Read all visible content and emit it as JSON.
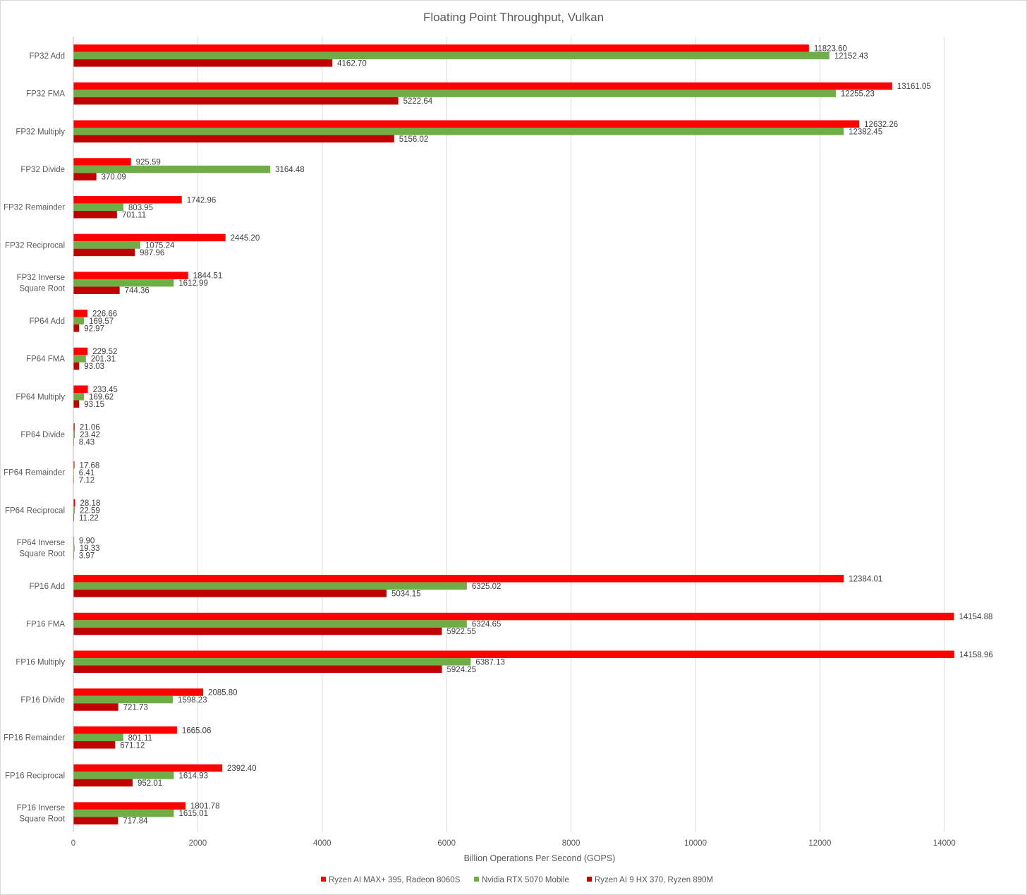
{
  "chart_data": {
    "type": "bar",
    "orientation": "horizontal",
    "title": "Floating Point Throughput, Vulkan",
    "xlabel": "Billion Operations Per Second (GOPS)",
    "ylabel": "",
    "xlim": [
      0,
      15000
    ],
    "x_ticks": [
      0,
      2000,
      4000,
      6000,
      8000,
      10000,
      12000,
      14000
    ],
    "grid": "vertical",
    "legend_position": "bottom",
    "categories": [
      "FP32 Add",
      "FP32 FMA",
      "FP32 Multiply",
      "FP32 Divide",
      "FP32 Remainder",
      "FP32 Reciprocal",
      "FP32 Inverse Square Root",
      "FP64 Add",
      "FP64 FMA",
      "FP64 Multiply",
      "FP64 Divide",
      "FP64 Remainder",
      "FP64 Reciprocal",
      "FP64 Inverse Square Root",
      "FP16 Add",
      "FP16 FMA",
      "FP16 Multiply",
      "FP16 Divide",
      "FP16 Remainder",
      "FP16 Reciprocal",
      "FP16 Inverse Square Root"
    ],
    "series": [
      {
        "name": "Ryzen AI MAX+ 395, Radeon 8060S",
        "color": "#ff0000",
        "values": [
          11823.6,
          13161.05,
          12632.26,
          925.59,
          1742.96,
          2445.2,
          1844.51,
          226.66,
          229.52,
          233.45,
          21.06,
          17.68,
          28.18,
          9.9,
          12384.01,
          14154.88,
          14158.96,
          2085.8,
          1665.06,
          2392.4,
          1801.78
        ],
        "labels": [
          "11823.60",
          "13161.05",
          "12632.26",
          "925.59",
          "1742.96",
          "2445.20",
          "1844.51",
          "226.66",
          "229.52",
          "233.45",
          "21.06",
          "17.68",
          "28.18",
          "9.90",
          "12384.01",
          "14154.88",
          "14158.96",
          "2085.80",
          "1665.06",
          "2392.40",
          "1801.78"
        ]
      },
      {
        "name": "Nvidia RTX 5070 Mobile",
        "color": "#70ad47",
        "values": [
          12152.43,
          12255.23,
          12382.45,
          3164.48,
          803.95,
          1075.24,
          1612.99,
          169.57,
          201.31,
          169.62,
          23.42,
          6.41,
          22.59,
          19.33,
          6325.02,
          6324.65,
          6387.13,
          1598.23,
          801.11,
          1614.93,
          1615.01
        ],
        "labels": [
          "12152.43",
          "12255.23",
          "12382.45",
          "3164.48",
          "803.95",
          "1075.24",
          "1612.99",
          "169.57",
          "201.31",
          "169.62",
          "23.42",
          "6.41",
          "22.59",
          "19.33",
          "6325.02",
          "6324.65",
          "6387.13",
          "1598.23",
          "801.11",
          "1614.93",
          "1615.01"
        ]
      },
      {
        "name": "Ryzen AI 9 HX 370, Ryzen 890M",
        "color": "#c00000",
        "values": [
          4162.7,
          5222.64,
          5156.02,
          370.09,
          701.11,
          987.96,
          744.36,
          92.97,
          93.03,
          93.15,
          8.43,
          7.12,
          11.22,
          3.97,
          5034.15,
          5922.55,
          5924.25,
          721.73,
          671.12,
          952.01,
          717.84
        ],
        "labels": [
          "4162.70",
          "5222.64",
          "5156.02",
          "370.09",
          "701.11",
          "987.96",
          "744.36",
          "92.97",
          "93.03",
          "93.15",
          "8.43",
          "7.12",
          "11.22",
          "3.97",
          "5034.15",
          "5922.55",
          "5924.25",
          "721.73",
          "671.12",
          "952.01",
          "717.84"
        ]
      }
    ]
  }
}
